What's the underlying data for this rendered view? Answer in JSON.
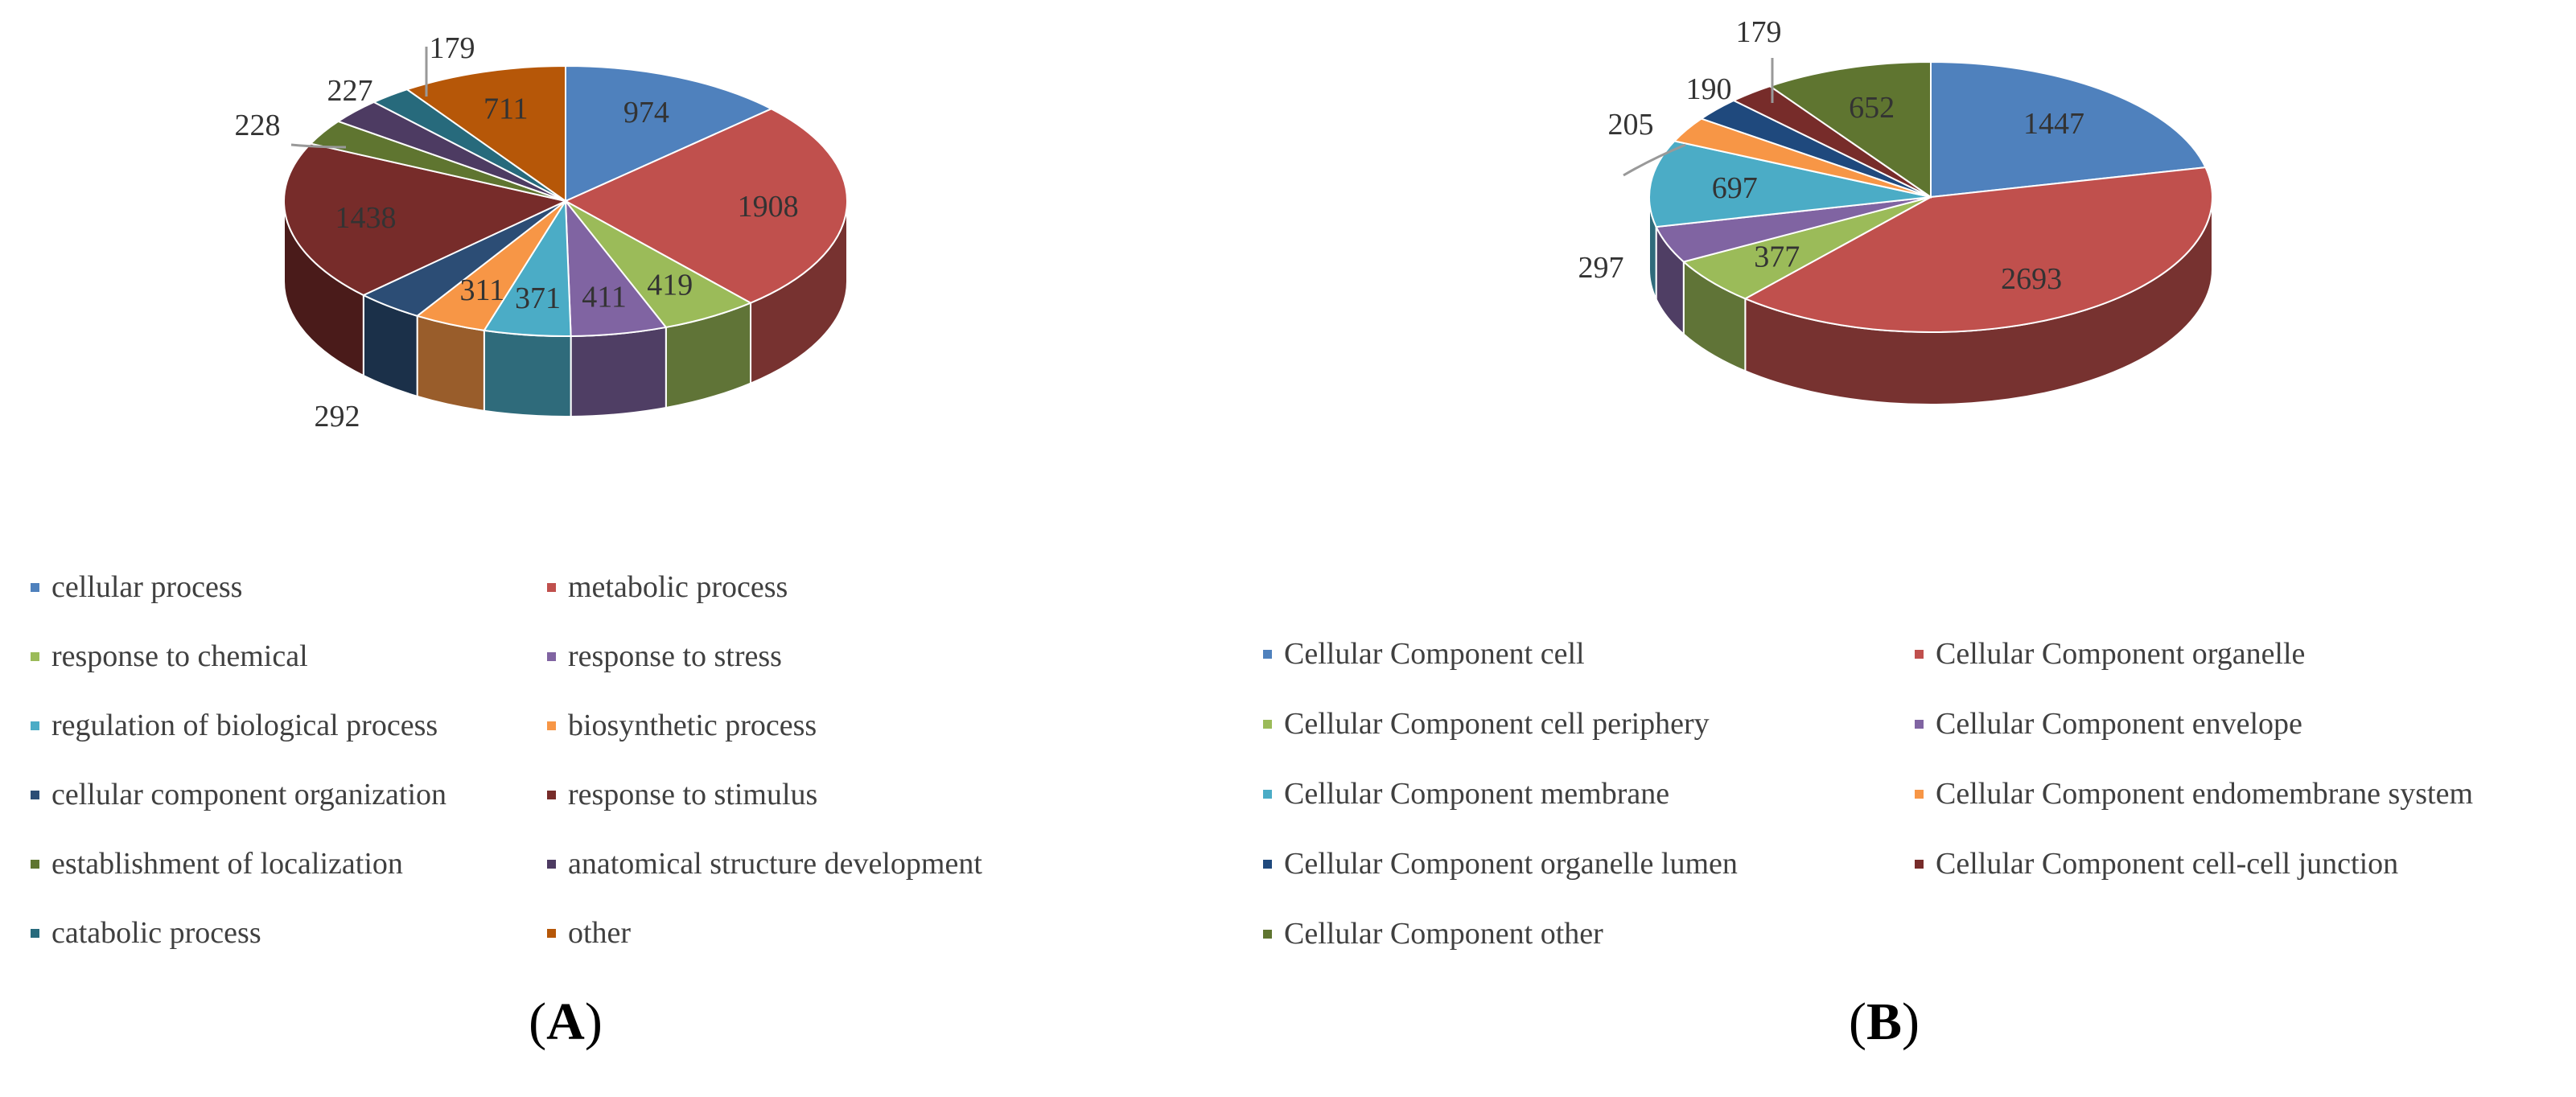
{
  "chart_data": [
    {
      "type": "pie",
      "panel_label": "(A)",
      "panel_letter": "A",
      "three_d": true,
      "legend_position": "bottom",
      "start_angle_deg": 90,
      "label_mode": "inside",
      "outside_labels": [
        "292",
        "228",
        "227",
        "179"
      ],
      "dark_labels": [
        "1438"
      ],
      "slices": [
        {
          "label": "cellular process",
          "value": 974,
          "color": "#4F81BD"
        },
        {
          "label": "metabolic process",
          "value": 1908,
          "color": "#C0504D"
        },
        {
          "label": "response to chemical",
          "value": 419,
          "color": "#9BBB59"
        },
        {
          "label": "response to stress",
          "value": 411,
          "color": "#8064A2"
        },
        {
          "label": "regulation of biological process",
          "value": 371,
          "color": "#4BACC6"
        },
        {
          "label": "biosynthetic process",
          "value": 311,
          "color": "#F79646"
        },
        {
          "label": "cellular component organization",
          "value": 292,
          "color": "#2C4D75"
        },
        {
          "label": "response to stimulus",
          "value": 1438,
          "color": "#772C2A"
        },
        {
          "label": "establishment of localization",
          "value": 228,
          "color": "#5F7530"
        },
        {
          "label": "anatomical structure development",
          "value": 227,
          "color": "#4D3B62"
        },
        {
          "label": "catabolic process",
          "value": 179,
          "color": "#276A7C"
        },
        {
          "label": "other",
          "value": 711,
          "color": "#B65708"
        }
      ]
    },
    {
      "type": "pie",
      "panel_label": "(B)",
      "panel_letter": "B",
      "three_d": true,
      "legend_position": "bottom",
      "start_angle_deg": 90,
      "label_mode": "inside",
      "outside_labels": [
        "297",
        "205",
        "190",
        "179"
      ],
      "dark_labels": [],
      "slices": [
        {
          "label": "Cellular Component cell",
          "value": 1447,
          "color": "#4F81BD"
        },
        {
          "label": "Cellular Component organelle",
          "value": 2693,
          "color": "#C0504D"
        },
        {
          "label": "Cellular Component cell periphery",
          "value": 377,
          "color": "#9BBB59"
        },
        {
          "label": "Cellular Component envelope",
          "value": 297,
          "color": "#8064A2"
        },
        {
          "label": "Cellular Component membrane",
          "value": 697,
          "color": "#4BACC6"
        },
        {
          "label": "Cellular Component endomembrane system",
          "value": 205,
          "color": "#F79646"
        },
        {
          "label": "Cellular Component organelle lumen",
          "value": 190,
          "color": "#1F497D"
        },
        {
          "label": "Cellular Component cell-cell junction",
          "value": 179,
          "color": "#772C2A"
        },
        {
          "label": "Cellular Component other",
          "value": 652,
          "color": "#5F7530"
        }
      ]
    }
  ]
}
